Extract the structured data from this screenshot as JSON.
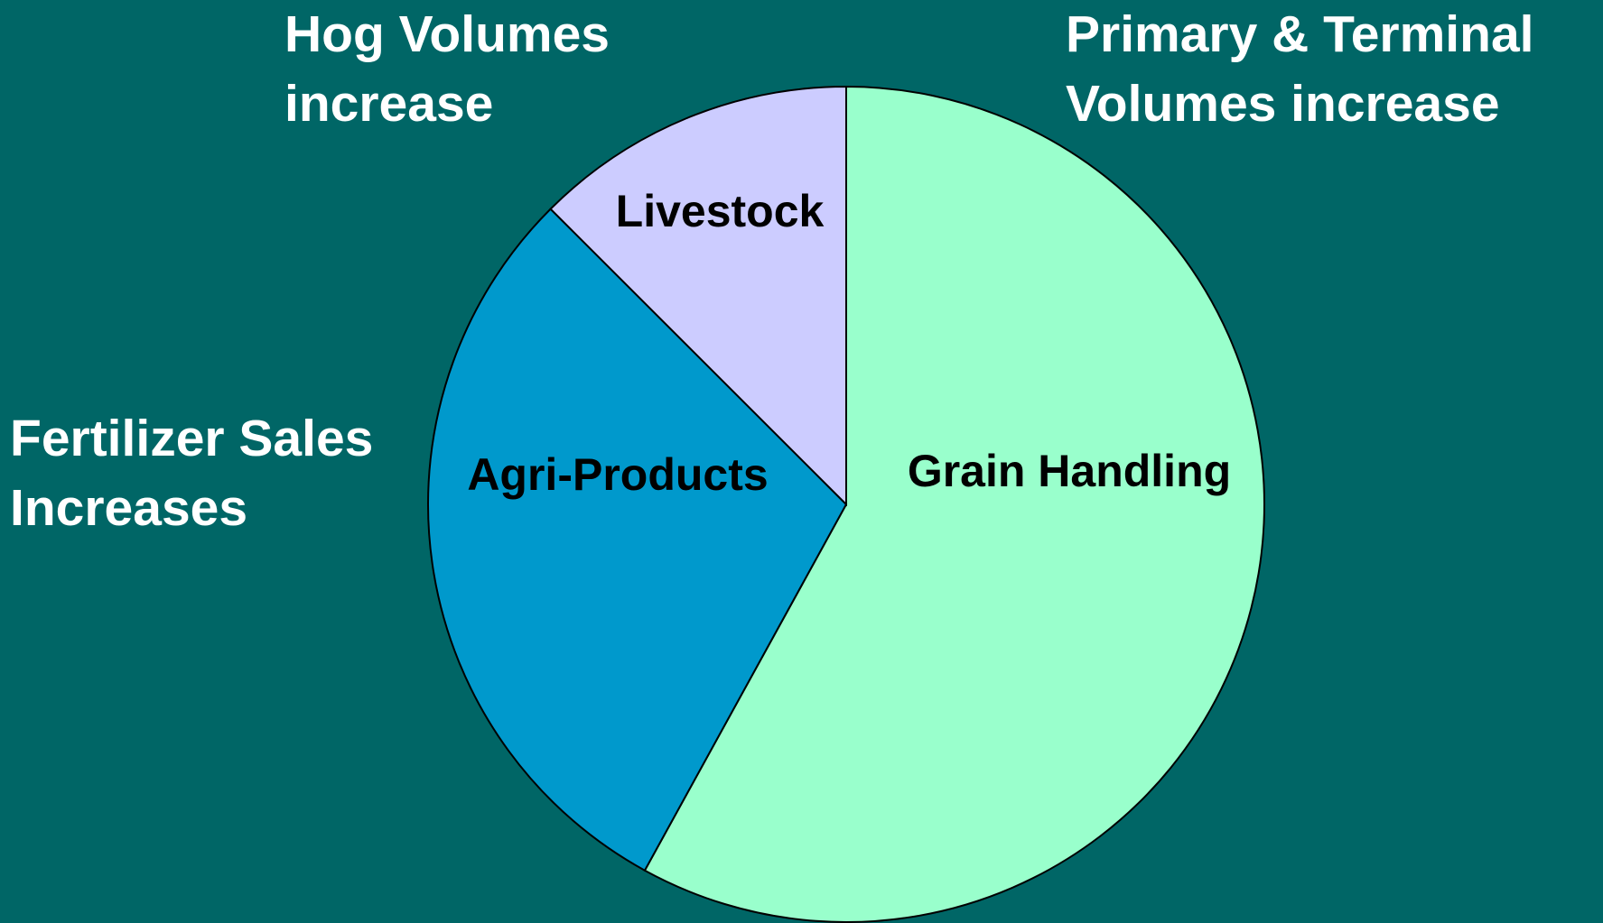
{
  "chart_data": {
    "type": "pie",
    "categories": [
      "Grain Handling",
      "Agri-Products",
      "Livestock"
    ],
    "values": [
      58,
      29.5,
      12.5
    ],
    "colors": [
      "#99ffcc",
      "#0099cc",
      "#ccccff"
    ],
    "annotations": [
      [
        "Hog Volumes",
        "increase"
      ],
      [
        "Primary & Terminal",
        "Volumes increase"
      ],
      [
        "Fertilizer Sales",
        "Increases"
      ]
    ]
  }
}
